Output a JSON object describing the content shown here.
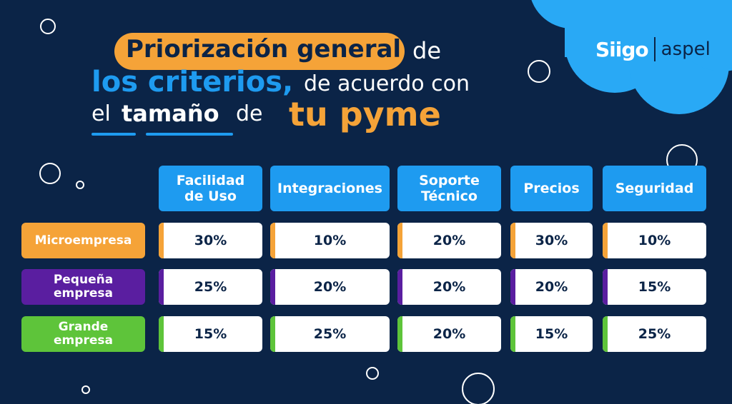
{
  "logo": {
    "brand1": "Siigo",
    "brand2": "aspel"
  },
  "title": {
    "line1_highlight": "Priorización general",
    "line1_rest": "de",
    "line2_highlight": "los criterios,",
    "line2_rest": "de acuerdo con",
    "line3_a": "el",
    "line3_b": "tamaño",
    "line3_c": "de",
    "line3_highlight": "tu pyme"
  },
  "table": {
    "columns": [
      {
        "label": "Facilidad\nde Uso"
      },
      {
        "label": "Integraciones"
      },
      {
        "label": "Soporte\nTécnico"
      },
      {
        "label": "Precios"
      },
      {
        "label": "Seguridad"
      }
    ],
    "rows": [
      {
        "label": "Microempresa",
        "color": "#f5a338",
        "values": [
          "30%",
          "10%",
          "20%",
          "30%",
          "10%"
        ]
      },
      {
        "label": "Pequeña\nempresa",
        "color": "#5a1ea0",
        "values": [
          "25%",
          "20%",
          "20%",
          "20%",
          "15%"
        ]
      },
      {
        "label": "Grande\nempresa",
        "color": "#5ec43a",
        "values": [
          "15%",
          "25%",
          "20%",
          "15%",
          "25%"
        ]
      }
    ]
  },
  "colors": {
    "background": "#0b2447",
    "accent_blue": "#1e9bf0",
    "accent_orange": "#f5a338",
    "cloud": "#29a9f5"
  }
}
